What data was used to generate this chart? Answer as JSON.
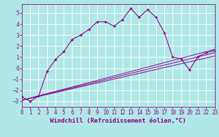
{
  "background_color": "#b0e8e8",
  "grid_color": "#ffffff",
  "line_color": "#880088",
  "marker": "+",
  "xlim": [
    0,
    23
  ],
  "ylim": [
    -3.5,
    5.8
  ],
  "yticks": [
    -3,
    -2,
    -1,
    0,
    1,
    2,
    3,
    4,
    5
  ],
  "xticks": [
    0,
    1,
    2,
    3,
    4,
    5,
    6,
    7,
    8,
    9,
    10,
    11,
    12,
    13,
    14,
    15,
    16,
    17,
    18,
    19,
    20,
    21,
    22,
    23
  ],
  "xlabel": "Windchill (Refroidissement éolien,°C)",
  "xlabel_fontsize": 6.5,
  "tick_fontsize": 5.5,
  "main_line": {
    "x": [
      0,
      1,
      2,
      3,
      4,
      5,
      6,
      7,
      8,
      9,
      10,
      11,
      12,
      13,
      14,
      15,
      16,
      17,
      18,
      19,
      20,
      21,
      22,
      23
    ],
    "y": [
      -2.6,
      -3.0,
      -2.5,
      -0.3,
      0.8,
      1.5,
      2.6,
      3.0,
      3.5,
      4.2,
      4.2,
      3.8,
      4.4,
      5.4,
      4.6,
      5.3,
      4.6,
      3.2,
      1.0,
      0.85,
      -0.15,
      1.05,
      1.4,
      1.6
    ]
  },
  "diag_lines": [
    {
      "x": [
        0,
        23
      ],
      "y": [
        -2.9,
        1.7
      ]
    },
    {
      "x": [
        0,
        23
      ],
      "y": [
        -2.9,
        1.4
      ]
    },
    {
      "x": [
        0,
        23
      ],
      "y": [
        -2.9,
        1.1
      ]
    }
  ]
}
